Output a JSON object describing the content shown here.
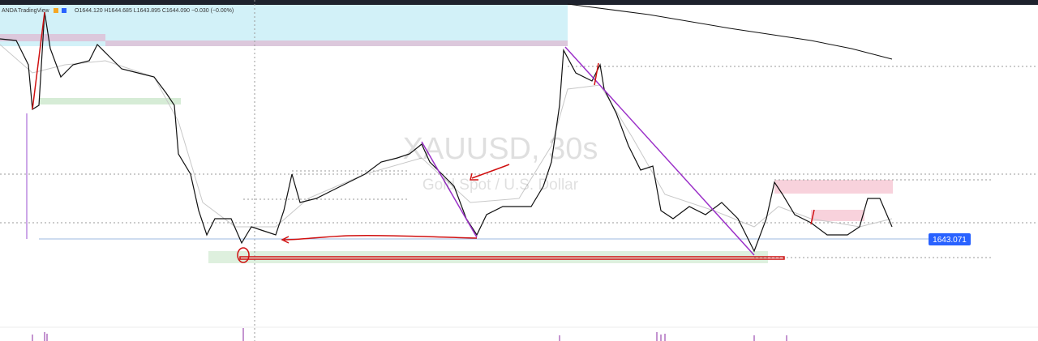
{
  "header": {
    "source": "ANDA",
    "platform": "TradingView",
    "ohlc": "O1644.120 H1644.685 L1643.895 C1644.090 −0.030 (−0.00%)"
  },
  "watermark": {
    "symbol": "XAUUSD, 30s",
    "description": "Gold Spot / U.S. Dollar"
  },
  "price_label": "1643.071"
}
